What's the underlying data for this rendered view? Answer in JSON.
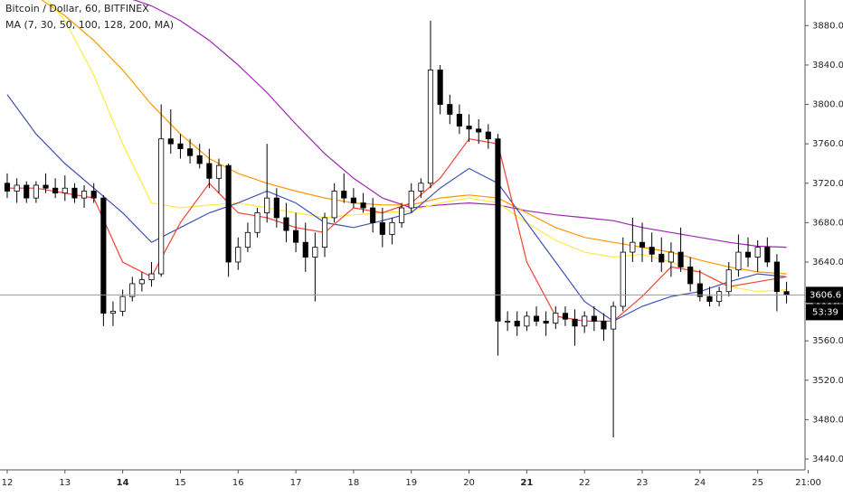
{
  "chart_data": {
    "type": "candlestick",
    "title": "Bitcoin / Dollar, 60, BITFINEX",
    "subtitle": "MA (7, 30, 50, 100, 128, 200, MA)",
    "x": [
      12,
      12.167,
      12.333,
      12.5,
      12.667,
      12.833,
      13,
      13.167,
      13.333,
      13.5,
      13.667,
      13.833,
      14,
      14.167,
      14.333,
      14.5,
      14.667,
      14.833,
      15,
      15.167,
      15.333,
      15.5,
      15.667,
      15.833,
      16,
      16.167,
      16.333,
      16.5,
      16.667,
      16.833,
      17,
      17.167,
      17.333,
      17.5,
      17.667,
      17.833,
      18,
      18.167,
      18.333,
      18.5,
      18.667,
      18.833,
      19,
      19.167,
      19.333,
      19.5,
      19.667,
      19.833,
      20,
      20.167,
      20.333,
      20.5,
      20.667,
      20.833,
      21,
      21.167,
      21.333,
      21.5,
      21.667,
      21.833,
      22,
      22.167,
      22.333,
      22.5,
      22.667,
      22.833,
      23,
      23.167,
      23.333,
      23.5,
      23.667,
      23.833,
      24,
      24.167,
      24.333,
      24.5,
      24.667,
      24.833,
      25,
      25.167,
      25.333,
      25.5
    ],
    "open": [
      3720,
      3712,
      3718,
      3705,
      3718,
      3715,
      3710,
      3715,
      3705,
      3712,
      3705,
      3588,
      3590,
      3605,
      3618,
      3622,
      3628,
      3765,
      3760,
      3755,
      3748,
      3740,
      3725,
      3738,
      3640,
      3655,
      3670,
      3690,
      3705,
      3685,
      3672,
      3660,
      3645,
      3655,
      3685,
      3712,
      3705,
      3700,
      3695,
      3680,
      3668,
      3680,
      3695,
      3712,
      3720,
      3835,
      3800,
      3790,
      3778,
      3775,
      3772,
      3765,
      3580,
      3580,
      3575,
      3585,
      3580,
      3578,
      3588,
      3582,
      3575,
      3585,
      3580,
      3572,
      3595,
      3650,
      3660,
      3655,
      3648,
      3640,
      3650,
      3635,
      3618,
      3605,
      3600,
      3610,
      3632,
      3650,
      3645,
      3655,
      3640,
      3610
    ],
    "high": [
      3730,
      3725,
      3722,
      3722,
      3730,
      3725,
      3728,
      3720,
      3718,
      3720,
      3708,
      3600,
      3612,
      3625,
      3630,
      3640,
      3800,
      3795,
      3770,
      3765,
      3760,
      3755,
      3745,
      3740,
      3665,
      3680,
      3695,
      3760,
      3715,
      3700,
      3690,
      3680,
      3670,
      3690,
      3720,
      3730,
      3715,
      3710,
      3705,
      3695,
      3685,
      3700,
      3720,
      3725,
      3885,
      3840,
      3810,
      3800,
      3790,
      3785,
      3780,
      3770,
      3590,
      3590,
      3590,
      3595,
      3590,
      3595,
      3595,
      3592,
      3590,
      3595,
      3588,
      3600,
      3665,
      3685,
      3680,
      3670,
      3665,
      3660,
      3675,
      3645,
      3632,
      3615,
      3615,
      3640,
      3668,
      3665,
      3662,
      3665,
      3648,
      3620
    ],
    "low": [
      3705,
      3700,
      3700,
      3700,
      3710,
      3705,
      3702,
      3700,
      3695,
      3700,
      3575,
      3575,
      3585,
      3600,
      3610,
      3615,
      3625,
      3750,
      3745,
      3740,
      3735,
      3715,
      3710,
      3625,
      3632,
      3650,
      3665,
      3680,
      3675,
      3660,
      3650,
      3630,
      3600,
      3645,
      3680,
      3700,
      3695,
      3690,
      3670,
      3655,
      3658,
      3675,
      3690,
      3705,
      3715,
      3790,
      3780,
      3770,
      3762,
      3760,
      3755,
      3545,
      3570,
      3565,
      3570,
      3575,
      3565,
      3572,
      3575,
      3555,
      3568,
      3570,
      3560,
      3462,
      3590,
      3640,
      3640,
      3640,
      3630,
      3625,
      3630,
      3610,
      3600,
      3595,
      3595,
      3605,
      3625,
      3635,
      3630,
      3635,
      3590,
      3598
    ],
    "close": [
      3712,
      3718,
      3705,
      3718,
      3715,
      3710,
      3715,
      3705,
      3712,
      3705,
      3588,
      3590,
      3605,
      3618,
      3622,
      3628,
      3765,
      3760,
      3755,
      3748,
      3740,
      3725,
      3738,
      3640,
      3655,
      3670,
      3690,
      3705,
      3685,
      3672,
      3660,
      3645,
      3655,
      3685,
      3712,
      3705,
      3700,
      3695,
      3680,
      3668,
      3680,
      3695,
      3712,
      3720,
      3835,
      3800,
      3790,
      3778,
      3775,
      3772,
      3765,
      3580,
      3580,
      3575,
      3585,
      3580,
      3578,
      3588,
      3582,
      3575,
      3585,
      3580,
      3572,
      3595,
      3650,
      3660,
      3655,
      3648,
      3640,
      3650,
      3635,
      3618,
      3605,
      3600,
      3610,
      3632,
      3650,
      3645,
      3655,
      3640,
      3610,
      3606.6
    ],
    "up_color": "#ffffff",
    "down_color": "#000000",
    "ma": {
      "x": [
        12,
        12.5,
        13,
        13.5,
        14,
        14.5,
        15,
        15.5,
        16,
        16.5,
        17,
        17.5,
        18,
        18.5,
        19,
        19.5,
        20,
        20.5,
        21,
        21.5,
        22,
        22.5,
        23,
        23.5,
        24,
        24.5,
        25,
        25.5
      ],
      "series": [
        {
          "color": "#9c27b0",
          "values": [
            3960,
            3945,
            3930,
            3920,
            3910,
            3900,
            3885,
            3865,
            3840,
            3812,
            3780,
            3750,
            3725,
            3705,
            3695,
            3698,
            3700,
            3698,
            3692,
            3688,
            3685,
            3682,
            3675,
            3670,
            3665,
            3660,
            3656,
            3655
          ]
        },
        {
          "color": "#ff9800",
          "values": [
            3930,
            3910,
            3890,
            3865,
            3835,
            3800,
            3770,
            3745,
            3730,
            3720,
            3712,
            3705,
            3700,
            3698,
            3698,
            3705,
            3708,
            3705,
            3690,
            3675,
            3665,
            3660,
            3655,
            3650,
            3642,
            3635,
            3630,
            3628
          ]
        },
        {
          "color": "#ffeb3b",
          "values": [
            3950,
            3920,
            3885,
            3830,
            3760,
            3700,
            3695,
            3698,
            3700,
            3695,
            3690,
            3685,
            3688,
            3690,
            3692,
            3700,
            3705,
            3700,
            3680,
            3662,
            3650,
            3645,
            3648,
            3640,
            3630,
            3615,
            3610,
            3612
          ]
        },
        {
          "color": "#3f51b5",
          "values": [
            3810,
            3770,
            3740,
            3715,
            3690,
            3660,
            3675,
            3690,
            3700,
            3712,
            3700,
            3680,
            3675,
            3682,
            3690,
            3715,
            3735,
            3720,
            3680,
            3640,
            3600,
            3580,
            3595,
            3605,
            3610,
            3620,
            3628,
            3625
          ]
        },
        {
          "color": "#f44336",
          "values": [
            3715,
            3715,
            3710,
            3705,
            3640,
            3625,
            3680,
            3720,
            3690,
            3685,
            3675,
            3670,
            3695,
            3690,
            3700,
            3725,
            3765,
            3760,
            3640,
            3585,
            3580,
            3580,
            3605,
            3635,
            3630,
            3615,
            3620,
            3625
          ]
        }
      ]
    },
    "last_price": 3606.6,
    "countdown": "53:39",
    "xlim": [
      11.875,
      25.82
    ],
    "ylim": [
      3429,
      3906
    ],
    "xticks": [
      12,
      13,
      14,
      15,
      16,
      17,
      18,
      19,
      20,
      21,
      22,
      23,
      24,
      25,
      {
        "value": 25.875,
        "label": "21:00"
      }
    ],
    "yticks": [
      {
        "value": 3440,
        "label": "3440.0"
      },
      {
        "value": 3480,
        "label": "3480.0"
      },
      {
        "value": 3520,
        "label": "3520.0"
      },
      {
        "value": 3560,
        "label": "3560.0"
      },
      {
        "value": 3600,
        "label": "3600.0"
      },
      {
        "value": 3640,
        "label": "3640.0"
      },
      {
        "value": 3680,
        "label": "3680.0"
      },
      {
        "value": 3720,
        "label": "3720.0"
      },
      {
        "value": 3760,
        "label": "3760.0"
      },
      {
        "value": 3800,
        "label": "3800.0"
      },
      {
        "value": 3840,
        "label": "3840.0"
      },
      {
        "value": 3880,
        "label": "3880.0"
      }
    ],
    "grid": false
  }
}
